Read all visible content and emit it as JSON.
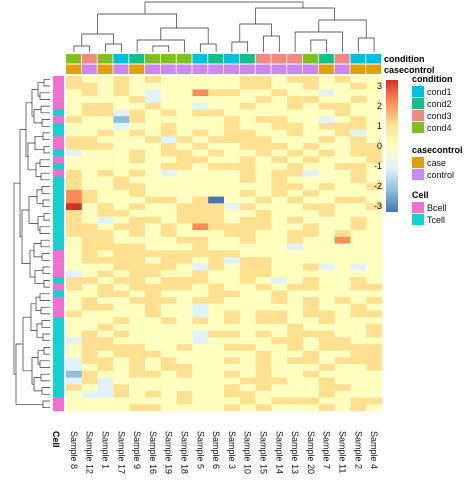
{
  "chart_data": {
    "type": "heatmap",
    "columns": [
      "Sample 8",
      "Sample 12",
      "Sample 1",
      "Sample 17",
      "Sample 9",
      "Sample 16",
      "Sample 19",
      "Sample 18",
      "Sample 5",
      "Sample 6",
      "Sample 3",
      "Sample 10",
      "Sample 15",
      "Sample 14",
      "Sample 13",
      "Sample 20",
      "Sample 7",
      "Sample 11",
      "Sample 2",
      "Sample 4"
    ],
    "column_annotations": {
      "condition": [
        "cond4",
        "cond3",
        "cond4",
        "cond1",
        "cond2",
        "cond4",
        "cond4",
        "cond4",
        "cond1",
        "cond2",
        "cond1",
        "cond2",
        "cond3",
        "cond3",
        "cond3",
        "cond4",
        "cond2",
        "cond3",
        "cond1",
        "cond1"
      ],
      "casecontrol": [
        "case",
        "control",
        "case",
        "control",
        "case",
        "control",
        "control",
        "control",
        "control",
        "control",
        "control",
        "control",
        "control",
        "control",
        "control",
        "control",
        "case",
        "control",
        "case",
        "case"
      ]
    },
    "row_annotation_title": "Cell",
    "row_annotation": [
      "Bcell",
      "Bcell",
      "Bcell",
      "Bcell",
      "Bcell",
      "Tcell",
      "Bcell",
      "Tcell",
      "Tcell",
      "Bcell",
      "Bcell",
      "Tcell",
      "Bcell",
      "Tcell",
      "Bcell",
      "Tcell",
      "Tcell",
      "Tcell",
      "Tcell",
      "Tcell",
      "Tcell",
      "Tcell",
      "Tcell",
      "Tcell",
      "Tcell",
      "Tcell",
      "Bcell",
      "Bcell",
      "Bcell",
      "Bcell",
      "Tcell",
      "Bcell",
      "Tcell",
      "Bcell",
      "Bcell",
      "Bcell",
      "Tcell",
      "Tcell",
      "Tcell",
      "Tcell",
      "Tcell",
      "Tcell",
      "Tcell",
      "Tcell",
      "Tcell",
      "Tcell",
      "Tcell",
      "Tcell",
      "Bcell",
      "Bcell"
    ],
    "values": [
      [
        1,
        0,
        0,
        1,
        0,
        1,
        0,
        0,
        0,
        0,
        0,
        1,
        1,
        0,
        1,
        1,
        0,
        1,
        0,
        0
      ],
      [
        1,
        1,
        0,
        1,
        0,
        0,
        0,
        0,
        0,
        0,
        0,
        1,
        1,
        0,
        0,
        1,
        0,
        0,
        1,
        0
      ],
      [
        0,
        1,
        0,
        1,
        0,
        -1,
        0,
        0,
        2,
        1,
        1,
        0,
        0,
        1,
        0,
        0,
        -1,
        0,
        0,
        0
      ],
      [
        0,
        0,
        0,
        0,
        1,
        -1,
        0,
        0,
        0,
        0,
        0,
        0,
        1,
        0,
        1,
        1,
        0,
        0,
        1,
        0
      ],
      [
        0,
        1,
        1,
        0,
        0,
        1,
        0,
        0,
        -1,
        0,
        0,
        1,
        0,
        0,
        1,
        0,
        1,
        1,
        0,
        0
      ],
      [
        0,
        1,
        1,
        -1,
        1,
        0,
        1,
        0,
        1,
        1,
        0,
        0,
        0,
        0,
        0,
        0,
        0,
        1,
        0,
        0
      ],
      [
        1,
        0,
        0,
        -2,
        1,
        0,
        0,
        0,
        0,
        0,
        1,
        0,
        1,
        1,
        0,
        0,
        -1,
        0,
        1,
        0
      ],
      [
        0,
        0,
        0,
        -1,
        0,
        0,
        1,
        0,
        0,
        0,
        1,
        0,
        0,
        1,
        1,
        0,
        1,
        1,
        1,
        0
      ],
      [
        0,
        0,
        1,
        0,
        1,
        0,
        1,
        0,
        1,
        0,
        1,
        1,
        0,
        0,
        1,
        0,
        0,
        1,
        -1,
        0
      ],
      [
        1,
        1,
        0,
        0,
        0,
        1,
        -1,
        1,
        0,
        1,
        1,
        1,
        1,
        0,
        0,
        0,
        1,
        0,
        1,
        0
      ],
      [
        1,
        1,
        1,
        0,
        0,
        0,
        1,
        0,
        1,
        0,
        0,
        1,
        1,
        1,
        0,
        1,
        0,
        0,
        1,
        1
      ],
      [
        -1,
        0,
        0,
        0,
        1,
        0,
        1,
        1,
        0,
        1,
        0,
        0,
        1,
        0,
        1,
        0,
        1,
        0,
        1,
        1
      ],
      [
        0,
        0,
        0,
        0,
        1,
        0,
        0,
        1,
        1,
        0,
        0,
        1,
        0,
        1,
        0,
        1,
        0,
        0,
        0,
        1
      ],
      [
        0,
        0,
        0,
        0,
        0,
        0,
        1,
        1,
        0,
        1,
        1,
        1,
        0,
        0,
        1,
        0,
        0,
        1,
        1,
        0
      ],
      [
        1,
        0,
        1,
        0,
        1,
        0,
        -1,
        0,
        0,
        0,
        0,
        1,
        0,
        1,
        1,
        -1,
        0,
        0,
        1,
        0
      ],
      [
        1,
        0,
        0,
        1,
        0,
        0,
        0,
        0,
        0,
        0,
        0,
        1,
        0,
        1,
        0,
        0,
        0,
        0,
        1,
        0
      ],
      [
        1,
        0,
        0,
        1,
        1,
        0,
        0,
        0,
        0,
        0,
        0,
        0,
        0,
        1,
        1,
        0,
        1,
        0,
        0,
        1
      ],
      [
        2,
        1,
        0,
        0,
        1,
        0,
        0,
        0,
        0,
        0,
        0,
        1,
        0,
        1,
        0,
        1,
        0,
        0,
        0,
        0
      ],
      [
        2,
        1,
        0,
        0,
        0,
        1,
        1,
        0,
        1,
        -3,
        0,
        0,
        1,
        0,
        1,
        0,
        0,
        1,
        1,
        0
      ],
      [
        3,
        0,
        1,
        0,
        1,
        0,
        0,
        1,
        1,
        1,
        -1,
        1,
        0,
        0,
        0,
        1,
        1,
        0,
        0,
        1
      ],
      [
        1,
        0,
        1,
        1,
        0,
        0,
        0,
        1,
        1,
        1,
        0,
        0,
        1,
        0,
        0,
        0,
        1,
        0,
        0,
        0
      ],
      [
        1,
        0,
        -1,
        0,
        1,
        1,
        0,
        1,
        1,
        1,
        0,
        1,
        1,
        0,
        1,
        0,
        0,
        0,
        1,
        0
      ],
      [
        1,
        1,
        0,
        1,
        1,
        0,
        1,
        0,
        2,
        1,
        1,
        1,
        1,
        0,
        0,
        1,
        0,
        0,
        1,
        0
      ],
      [
        1,
        1,
        1,
        0,
        1,
        0,
        1,
        0,
        0,
        0,
        1,
        1,
        0,
        0,
        1,
        1,
        0,
        1,
        0,
        0
      ],
      [
        0,
        1,
        1,
        0,
        0,
        0,
        0,
        1,
        1,
        0,
        0,
        1,
        0,
        0,
        1,
        0,
        0,
        2,
        0,
        0
      ],
      [
        0,
        1,
        1,
        1,
        1,
        0,
        0,
        0,
        1,
        0,
        0,
        0,
        0,
        0,
        -1,
        0,
        0,
        0,
        0,
        0
      ],
      [
        0,
        1,
        0,
        1,
        1,
        1,
        1,
        1,
        1,
        1,
        1,
        0,
        0,
        0,
        0,
        0,
        0,
        0,
        0,
        0
      ],
      [
        0,
        1,
        1,
        1,
        1,
        0,
        1,
        1,
        0,
        1,
        -1,
        1,
        1,
        0,
        0,
        0,
        0,
        0,
        0,
        0
      ],
      [
        0,
        0,
        0,
        1,
        1,
        1,
        1,
        0,
        -1,
        1,
        0,
        1,
        1,
        0,
        0,
        1,
        -1,
        0,
        -1,
        0
      ],
      [
        -1,
        0,
        1,
        0,
        1,
        1,
        0,
        0,
        1,
        0,
        0,
        1,
        1,
        0,
        0,
        0,
        0,
        0,
        0,
        0
      ],
      [
        1,
        1,
        0,
        1,
        1,
        0,
        1,
        1,
        1,
        0,
        0,
        1,
        0,
        -1,
        0,
        1,
        0,
        0,
        1,
        0
      ],
      [
        1,
        0,
        1,
        0,
        1,
        1,
        1,
        1,
        0,
        1,
        0,
        0,
        1,
        0,
        1,
        1,
        0,
        0,
        1,
        1
      ],
      [
        0,
        0,
        1,
        1,
        0,
        1,
        0,
        0,
        0,
        1,
        1,
        0,
        0,
        1,
        0,
        0,
        0,
        0,
        0,
        0
      ],
      [
        0,
        1,
        0,
        0,
        1,
        1,
        1,
        0,
        1,
        1,
        0,
        0,
        0,
        1,
        0,
        1,
        0,
        1,
        0,
        1
      ],
      [
        0,
        1,
        1,
        0,
        0,
        1,
        0,
        0,
        -1,
        0,
        0,
        0,
        0,
        0,
        0,
        1,
        0,
        0,
        1,
        0
      ],
      [
        1,
        0,
        0,
        0,
        0,
        1,
        0,
        0,
        -1,
        0,
        1,
        0,
        1,
        1,
        0,
        1,
        1,
        0,
        1,
        1
      ],
      [
        0,
        0,
        0,
        1,
        0,
        0,
        1,
        0,
        1,
        0,
        1,
        0,
        1,
        1,
        0,
        0,
        1,
        0,
        0,
        0
      ],
      [
        0,
        0,
        1,
        0,
        0,
        0,
        0,
        0,
        0,
        0,
        0,
        0,
        0,
        0,
        1,
        0,
        0,
        0,
        0,
        1
      ],
      [
        0,
        1,
        0,
        1,
        0,
        0,
        0,
        0,
        -1,
        1,
        1,
        0,
        1,
        0,
        1,
        1,
        1,
        0,
        0,
        1
      ],
      [
        -1,
        1,
        1,
        0,
        0,
        0,
        0,
        0,
        -1,
        0,
        0,
        0,
        0,
        1,
        1,
        0,
        1,
        1,
        0,
        0
      ],
      [
        0,
        1,
        1,
        1,
        1,
        0,
        0,
        1,
        0,
        0,
        1,
        1,
        0,
        0,
        1,
        0,
        1,
        1,
        1,
        1
      ],
      [
        0,
        1,
        0,
        1,
        1,
        1,
        0,
        0,
        0,
        0,
        0,
        0,
        1,
        0,
        0,
        1,
        0,
        0,
        1,
        1
      ],
      [
        -1,
        1,
        1,
        0,
        1,
        0,
        1,
        0,
        0,
        0,
        1,
        0,
        1,
        0,
        1,
        1,
        0,
        1,
        1,
        1
      ],
      [
        -1,
        0,
        1,
        0,
        1,
        0,
        1,
        1,
        0,
        0,
        0,
        0,
        1,
        0,
        0,
        0,
        1,
        0,
        0,
        1
      ],
      [
        -2,
        1,
        0,
        0,
        1,
        1,
        0,
        1,
        0,
        0,
        1,
        0,
        1,
        0,
        0,
        1,
        0,
        0,
        0,
        0
      ],
      [
        -1,
        1,
        -1,
        0,
        0,
        0,
        0,
        0,
        0,
        0,
        0,
        1,
        1,
        1,
        0,
        0,
        1,
        0,
        0,
        0
      ],
      [
        1,
        0,
        -1,
        1,
        0,
        0,
        0,
        0,
        0,
        0,
        1,
        0,
        1,
        0,
        0,
        0,
        1,
        1,
        0,
        0
      ],
      [
        0,
        -1,
        -1,
        1,
        0,
        1,
        0,
        1,
        0,
        0,
        1,
        1,
        0,
        0,
        0,
        0,
        1,
        0,
        0,
        0
      ],
      [
        0,
        0,
        0,
        0,
        0,
        0,
        0,
        1,
        0,
        0,
        0,
        1,
        0,
        1,
        1,
        1,
        0,
        0,
        1,
        1
      ],
      [
        0,
        0,
        0,
        0,
        1,
        1,
        0,
        0,
        0,
        0,
        1,
        0,
        1,
        0,
        0,
        0,
        1,
        0,
        1,
        0
      ]
    ],
    "color_scale": {
      "breaks": [
        -3,
        -2,
        -1,
        0,
        1,
        2,
        3
      ],
      "colors": [
        "#4575b4",
        "#91bfdb",
        "#e0f3f8",
        "#ffffbf",
        "#fee090",
        "#fc8d59",
        "#d73027"
      ]
    },
    "legends": {
      "condition": {
        "title": "condition",
        "items": [
          {
            "label": "cond1",
            "color": "#00c0e0"
          },
          {
            "label": "cond2",
            "color": "#14c08a"
          },
          {
            "label": "cond3",
            "color": "#f08a80"
          },
          {
            "label": "cond4",
            "color": "#7ec021"
          }
        ]
      },
      "casecontrol": {
        "title": "casecontrol",
        "items": [
          {
            "label": "case",
            "color": "#e0a000"
          },
          {
            "label": "control",
            "color": "#cc88f0"
          }
        ]
      },
      "cell": {
        "title": "Cell",
        "items": [
          {
            "label": "Bcell",
            "color": "#f070d0"
          },
          {
            "label": "Tcell",
            "color": "#14d0d0"
          }
        ]
      }
    },
    "colorbar_ticks": [
      "3",
      "2",
      "1",
      "0",
      "-1",
      "-2",
      "-3"
    ]
  }
}
